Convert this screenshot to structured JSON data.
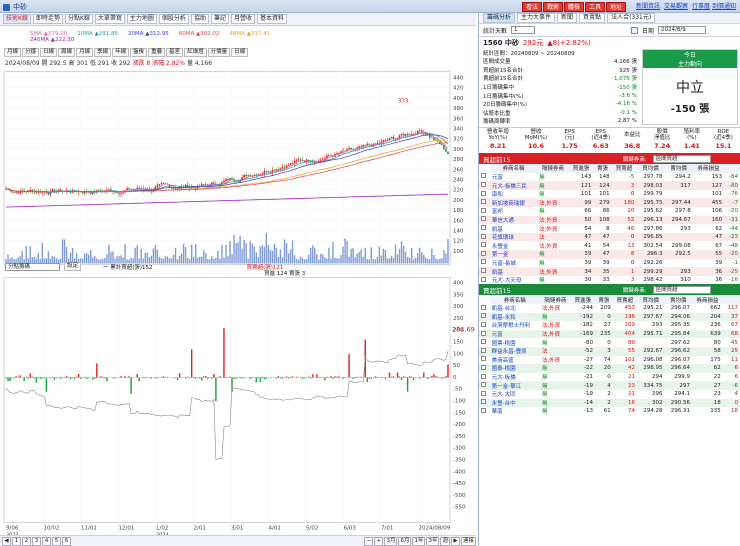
{
  "topbar": {
    "title": "中砂",
    "buttons": [
      "看法",
      "戰術",
      "體檢",
      "工具",
      "地址"
    ],
    "links": [
      "新聞資訊",
      "交易觀察",
      "行事曆",
      "到價通知"
    ]
  },
  "toolbar": {
    "tabs": [
      "技術K線",
      "即時走勢",
      "分點K線",
      "大單帶寫",
      "主力地圖",
      "個股分析",
      "協助",
      "筆記",
      "月營收",
      "基本資料"
    ]
  },
  "ma_row": [
    {
      "label": "5MA ▲279.20",
      "color": "#ff5fa0"
    },
    {
      "label": "10MA ▲291.85",
      "color": "#1ca0a8"
    },
    {
      "label": "20MA ▲312.95",
      "color": "#3a3ad0"
    },
    {
      "label": "60MA ▲302.02",
      "color": "#e3454b"
    },
    {
      "label": "48MA ▲317.41",
      "color": "#f0a020"
    }
  ],
  "ma_row2": "240MA ▲222.30",
  "period_tools": [
    "月線",
    "分鐘",
    "日線",
    "周線",
    "月線",
    "季線",
    "年線",
    "盤後",
    "重疊",
    "基差",
    "紅綠燈",
    "分價量",
    "日線"
  ],
  "info": {
    "date": "2024/08/09",
    "open": "開 292.5",
    "high": "高 301",
    "low": "低 291",
    "close": "收 292",
    "chg": "漲跌 8",
    "pct": "漲幅 2.82%",
    "vol": "量 4,166"
  },
  "peak_label": "373",
  "price_axis": [
    "440",
    "420",
    "400",
    "380",
    "360",
    "340",
    "320",
    "300",
    "280",
    "260",
    "240",
    "220",
    "200",
    "180",
    "160",
    "140",
    "120",
    "100"
  ],
  "lower_header": {
    "select": "分點籌碼",
    "btn": "設定",
    "legend1": "一 累計買超(張)152",
    "legend2": "買賣超(張)121",
    "legend3": "買進 124 賣張 3"
  },
  "lower_axis": [
    "400",
    "350",
    "300",
    "250",
    "200",
    "150",
    "100",
    "50",
    "0",
    "-50",
    "-100",
    "-150",
    "-200",
    "-250",
    "-300",
    "-350",
    "-400",
    "-450",
    "-500",
    "-550"
  ],
  "lower_tag": "284.69",
  "x_axis": [
    "9/06\n2023",
    "10/02",
    "11/01",
    "12/01",
    "1/02\n2024",
    "2/01",
    "3/01",
    "4/01",
    "5/02",
    "6/03",
    "7/01",
    "2024/08/09"
  ],
  "pager": {
    "pages": [
      "1",
      "2",
      "3",
      "4",
      "5",
      "6"
    ],
    "ranges": [
      "3月",
      "6月",
      "1年",
      "3年",
      "週"
    ],
    "goto": "連接"
  },
  "right": {
    "tabs": [
      "籌碼分析",
      "主力大事件",
      "新聞",
      "買賣點",
      "法人合(331元)"
    ],
    "days_label": "統計天數",
    "days_value": "1",
    "date_label": "日期",
    "date_value": "2024/8/9",
    "stock": "1560 中砂",
    "price": "292元",
    "chg": "▲8(+2.82%)",
    "summary": [
      [
        "區間成交量",
        "4,166 張"
      ],
      [
        "買超前15名合計",
        "925 張"
      ],
      [
        "賣超前15名合計",
        "-1,075 張"
      ],
      [
        "1日籌碼集中",
        "-150 張"
      ],
      [
        "1日籌碼集中(%)",
        "-3.6 %"
      ],
      [
        "20日籌碼集中(%)",
        "-4.16 %"
      ],
      [
        "佔股本比重",
        "-0.1 %"
      ],
      [
        "籌碼周轉率",
        "2.87 %"
      ]
    ],
    "range": "統計區間：20240809 ~ 20240809",
    "today": "今日",
    "trend": "主力動向",
    "verdict": "中立",
    "verdict_val": "-150 張",
    "metrics_head": [
      "營收年增\nYoY(%)",
      "營收\nMoM(%)",
      "EPS\n(元)",
      "EPS\n(近4季)",
      "本益比",
      "股價\n淨值比",
      "殖利率\n(%)",
      "ROE\n(近4季)"
    ],
    "metrics": [
      "8.21",
      "10.6",
      "1.75",
      "6.63",
      "36.8",
      "7.24",
      "1.41",
      "15.1"
    ],
    "buy_title": "買超前15",
    "sell_title": "賣超前15",
    "filter_label": "關鍵券商:",
    "filter_value": "區間買超",
    "cols": [
      "券商名稱",
      "隔鏈券商",
      "買進張",
      "賣張",
      "買賣超",
      "買均價",
      "賣均價",
      "券商損益"
    ],
    "buy": [
      [
        "元富",
        "無",
        "143",
        "148",
        "-5",
        "297.78",
        "294.2",
        "153",
        "-84"
      ],
      [
        "元大-板橋三民",
        "無",
        "121",
        "124",
        "3",
        "298.03",
        "317",
        "127",
        "-80"
      ],
      [
        "康和",
        "無",
        "101",
        "101",
        "0",
        "299.79",
        "",
        "101",
        "-76"
      ],
      [
        "新加坡商瑞銀",
        "法,外資",
        "99",
        "279",
        "180",
        "295.75",
        "297.44",
        "455",
        "-7"
      ],
      [
        "富邦",
        "無",
        "66",
        "86",
        "20",
        "295.62",
        "297.8",
        "106",
        "-20"
      ],
      [
        "華信大通",
        "法,外資",
        "50",
        "108",
        "52",
        "296.13",
        "294.67",
        "160",
        "-31"
      ],
      [
        "凱基",
        "法,外資",
        "54",
        "8",
        "46",
        "297.86",
        "293",
        "62",
        "-44"
      ],
      [
        "花旗環球",
        "法",
        "47",
        "47",
        "0",
        "296.85",
        "",
        "47",
        "-23"
      ],
      [
        "永豐金",
        "法,外資",
        "41",
        "54",
        "13",
        "302.54",
        "299.08",
        "67",
        "-48"
      ],
      [
        "第一金",
        "無",
        "39",
        "47",
        "8",
        "296.3",
        "292.5",
        "55",
        "-20"
      ],
      [
        "元富-長城",
        "無",
        "39",
        "39",
        "0",
        "292.26",
        "",
        "39",
        "-1"
      ],
      [
        "凱基",
        "法,外資",
        "34",
        "35",
        "1",
        "299.29",
        "293",
        "36",
        "-25"
      ],
      [
        "元大-大天母",
        "無",
        "30",
        "33",
        "3",
        "298.42",
        "310",
        "36",
        "-16"
      ]
    ],
    "sell": [
      [
        "凱基-台北",
        "法,外資",
        "-244",
        "209",
        "453",
        "295.21",
        "296.07",
        "662",
        "117"
      ],
      [
        "凱基-永和",
        "無",
        "-192",
        "0",
        "196",
        "297.67",
        "294.06",
        "204",
        "37"
      ],
      [
        "台灣摩根士丹利",
        "法,外資",
        "-182",
        "27",
        "209",
        "293",
        "295.35",
        "236",
        "67"
      ],
      [
        "元富",
        "法,外資",
        "-169",
        "235",
        "404",
        "295.71",
        "295.84",
        "639",
        "68"
      ],
      [
        "國票-桃園",
        "無",
        "-80",
        "0",
        "80",
        "",
        "297.62",
        "80",
        "45"
      ],
      [
        "群益永昌-豐原",
        "法",
        "-52",
        "3",
        "55",
        "292.67",
        "296.62",
        "58",
        "25"
      ],
      [
        "美商高盛",
        "法,外資",
        "-27",
        "74",
        "101",
        "296.08",
        "296.07",
        "175",
        "11"
      ],
      [
        "國泰-桃園",
        "無",
        "-22",
        "20",
        "42",
        "298.95",
        "296.64",
        "62",
        "6"
      ],
      [
        "元大-板橋",
        "無",
        "-21",
        "0",
        "21",
        "294",
        "299.9",
        "22",
        "6"
      ],
      [
        "第一金-華江",
        "無",
        "-19",
        "4",
        "23",
        "334.75",
        "297",
        "27",
        "-6"
      ],
      [
        "元大-大同",
        "無",
        "-19",
        "2",
        "21",
        "296",
        "294.1",
        "23",
        "4"
      ],
      [
        "永豐-台中",
        "無",
        "-14",
        "2",
        "16",
        "302",
        "290.56",
        "18",
        "0"
      ],
      [
        "華南",
        "無",
        "-13",
        "61",
        "74",
        "294.28",
        "296.31",
        "135",
        "18"
      ]
    ]
  }
}
